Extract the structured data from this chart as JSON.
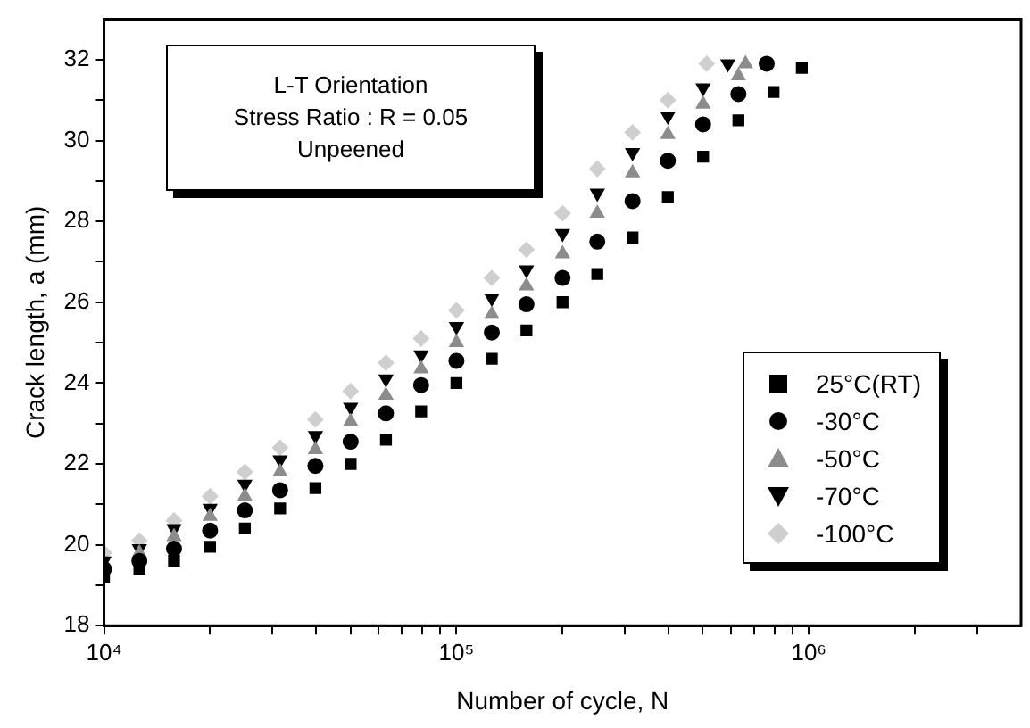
{
  "chart_data": {
    "type": "scatter",
    "xlabel": "Number of cycle, N",
    "ylabel": "Crack length, a (mm)",
    "log": "x",
    "xlim": [
      10000,
      4000000
    ],
    "ylim": [
      18,
      33
    ],
    "xticks": [
      {
        "value": 10000,
        "label": "10⁴"
      },
      {
        "value": 20000,
        "label": null
      },
      {
        "value": 30000,
        "label": null
      },
      {
        "value": 40000,
        "label": null
      },
      {
        "value": 50000,
        "label": null
      },
      {
        "value": 60000,
        "label": null
      },
      {
        "value": 70000,
        "label": null
      },
      {
        "value": 80000,
        "label": null
      },
      {
        "value": 90000,
        "label": null
      },
      {
        "value": 100000,
        "label": "10⁵"
      },
      {
        "value": 200000,
        "label": null
      },
      {
        "value": 300000,
        "label": null
      },
      {
        "value": 400000,
        "label": null
      },
      {
        "value": 500000,
        "label": null
      },
      {
        "value": 600000,
        "label": null
      },
      {
        "value": 700000,
        "label": null
      },
      {
        "value": 800000,
        "label": null
      },
      {
        "value": 900000,
        "label": null
      },
      {
        "value": 1000000,
        "label": "10⁶"
      },
      {
        "value": 2000000,
        "label": null
      },
      {
        "value": 3000000,
        "label": null
      }
    ],
    "yticks": [
      18,
      {
        "value": 19,
        "label": null
      },
      20,
      {
        "value": 21,
        "label": null
      },
      22,
      {
        "value": 23,
        "label": null
      },
      24,
      {
        "value": 25,
        "label": null
      },
      26,
      {
        "value": 27,
        "label": null
      },
      28,
      {
        "value": 29,
        "label": null
      },
      30,
      {
        "value": 31,
        "label": null
      },
      32
    ],
    "legend": "bottom right",
    "annotations": [
      "L-T Orientation",
      "Stress Ratio : R = 0.05",
      "Unpeened"
    ],
    "series": [
      {
        "name": "25°C(RT)",
        "color": "#000000",
        "marker": "square",
        "x": [
          10000,
          12600,
          15800,
          20000,
          25100,
          31600,
          39800,
          50100,
          63100,
          79400,
          100000,
          126000,
          158000,
          200000,
          251000,
          316000,
          398000,
          501000,
          631000,
          794000,
          955000
        ],
        "values": [
          19.2,
          19.4,
          19.6,
          19.95,
          20.4,
          20.9,
          21.4,
          22.0,
          22.6,
          23.3,
          24.0,
          24.6,
          25.3,
          26.0,
          26.7,
          27.6,
          28.6,
          29.6,
          30.5,
          31.2,
          31.8
        ]
      },
      {
        "name": "-30°C",
        "color": "#000000",
        "marker": "circle",
        "x": [
          10000,
          12600,
          15800,
          20000,
          25100,
          31600,
          39800,
          50100,
          63100,
          79400,
          100000,
          126000,
          158000,
          200000,
          251000,
          316000,
          398000,
          501000,
          631000,
          759000
        ],
        "values": [
          19.4,
          19.6,
          19.9,
          20.35,
          20.85,
          21.35,
          21.95,
          22.55,
          23.25,
          23.95,
          24.55,
          25.25,
          25.95,
          26.6,
          27.5,
          28.5,
          29.5,
          30.4,
          31.15,
          31.9
        ]
      },
      {
        "name": "-50°C",
        "color": "#8c8c8c",
        "marker": "triangle",
        "x": [
          12600,
          15800,
          20000,
          25100,
          31600,
          39800,
          50100,
          63100,
          79400,
          100000,
          126000,
          158000,
          200000,
          251000,
          316000,
          398000,
          501000,
          631000,
          661000
        ],
        "values": [
          19.8,
          20.2,
          20.7,
          21.2,
          21.8,
          22.35,
          23.05,
          23.7,
          24.35,
          25.0,
          25.7,
          26.4,
          27.2,
          28.2,
          29.2,
          30.15,
          30.9,
          31.6,
          31.9
        ]
      },
      {
        "name": "-70°C",
        "color": "#000000",
        "marker": "triangle-down",
        "x": [
          10000,
          12600,
          15800,
          20000,
          25100,
          31600,
          39800,
          50100,
          63100,
          79400,
          100000,
          126000,
          158000,
          200000,
          251000,
          316000,
          398000,
          501000,
          589000
        ],
        "values": [
          19.6,
          19.9,
          20.4,
          20.9,
          21.5,
          22.1,
          22.7,
          23.4,
          24.1,
          24.7,
          25.4,
          26.1,
          26.8,
          27.7,
          28.7,
          29.7,
          30.6,
          31.3,
          31.9
        ]
      },
      {
        "name": "-100°C",
        "color": "#cfcfcf",
        "marker": "diamond",
        "x": [
          10000,
          12600,
          15800,
          20000,
          25100,
          31600,
          39800,
          50100,
          63100,
          79400,
          100000,
          126000,
          158000,
          200000,
          251000,
          316000,
          398000,
          513000
        ],
        "values": [
          19.8,
          20.1,
          20.6,
          21.2,
          21.8,
          22.4,
          23.1,
          23.8,
          24.5,
          25.1,
          25.8,
          26.6,
          27.3,
          28.2,
          29.3,
          30.2,
          31.0,
          31.9
        ]
      }
    ]
  }
}
